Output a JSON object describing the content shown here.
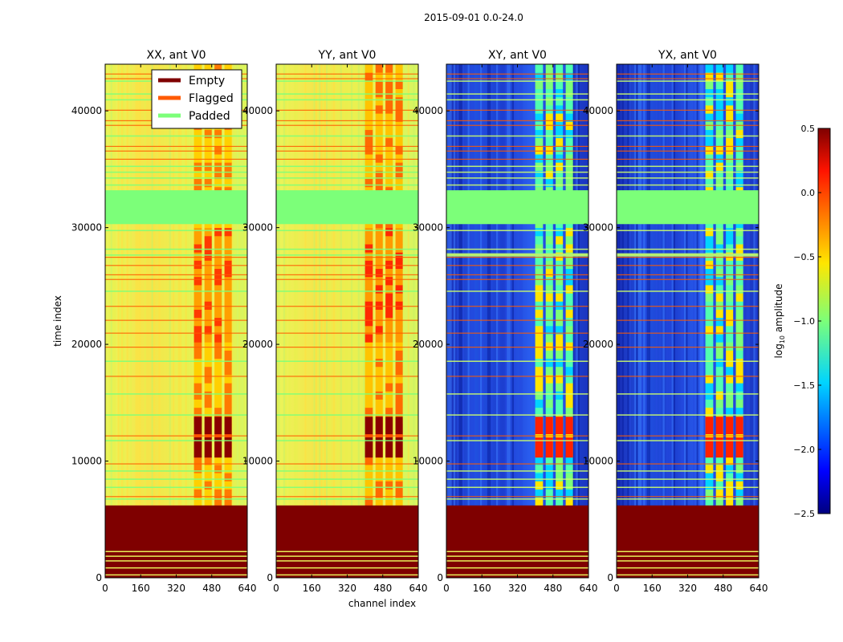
{
  "chart_data": {
    "type": "heatmap",
    "title": "2015-09-01 0.0-24.0",
    "xlabel": "channel index",
    "ylabel": "time index",
    "xlim": [
      0,
      640
    ],
    "ylim": [
      0,
      44000
    ],
    "xticks": [
      0,
      160,
      320,
      480,
      640
    ],
    "xtick_labels": [
      "0",
      "160",
      "320",
      "480",
      "640"
    ],
    "yticks": [
      0,
      10000,
      20000,
      30000,
      40000
    ],
    "ytick_labels": [
      "0",
      "10000",
      "20000",
      "30000",
      "40000"
    ],
    "panels": [
      {
        "title": "XX, ant V0",
        "pol": "XX"
      },
      {
        "title": "YY, ant V0",
        "pol": "YY"
      },
      {
        "title": "XY, ant V0",
        "pol": "XY"
      },
      {
        "title": "YX, ant V0",
        "pol": "YX"
      }
    ],
    "legend": {
      "position": "top-right",
      "entries": [
        {
          "label": "Empty",
          "color": "#7f0000"
        },
        {
          "label": "Flagged",
          "color": "#ff5a00"
        },
        {
          "label": "Padded",
          "color": "#7cff79"
        }
      ]
    },
    "colorbar": {
      "label_main": "log",
      "label_sub": "10",
      "label_rest": " amplitude",
      "range": [
        -2.5,
        0.5
      ],
      "ticks": [
        0.5,
        0.0,
        -0.5,
        -1.0,
        -1.5,
        -2.0,
        -2.5
      ],
      "tick_labels": [
        "0.5",
        "0.0",
        "−0.5",
        "−1.0",
        "−1.5",
        "−2.0",
        "−2.5"
      ],
      "colormap": "jet"
    },
    "regions": {
      "empty_time_range": [
        0,
        6200
      ],
      "padded_time_range": [
        30300,
        33200
      ],
      "active_channel_range": [
        400,
        570
      ],
      "strong_rfi_time_range": [
        10300,
        13800
      ],
      "padded_lines_in_empty": [
        300,
        900,
        1500,
        1900,
        2300
      ]
    },
    "colors": {
      "empty": "#7f0000",
      "padded": "#7cff79",
      "parallel_background": "#f0f05a",
      "cross_background": "#1e3cc8",
      "flagged": "#ff5a00"
    }
  }
}
